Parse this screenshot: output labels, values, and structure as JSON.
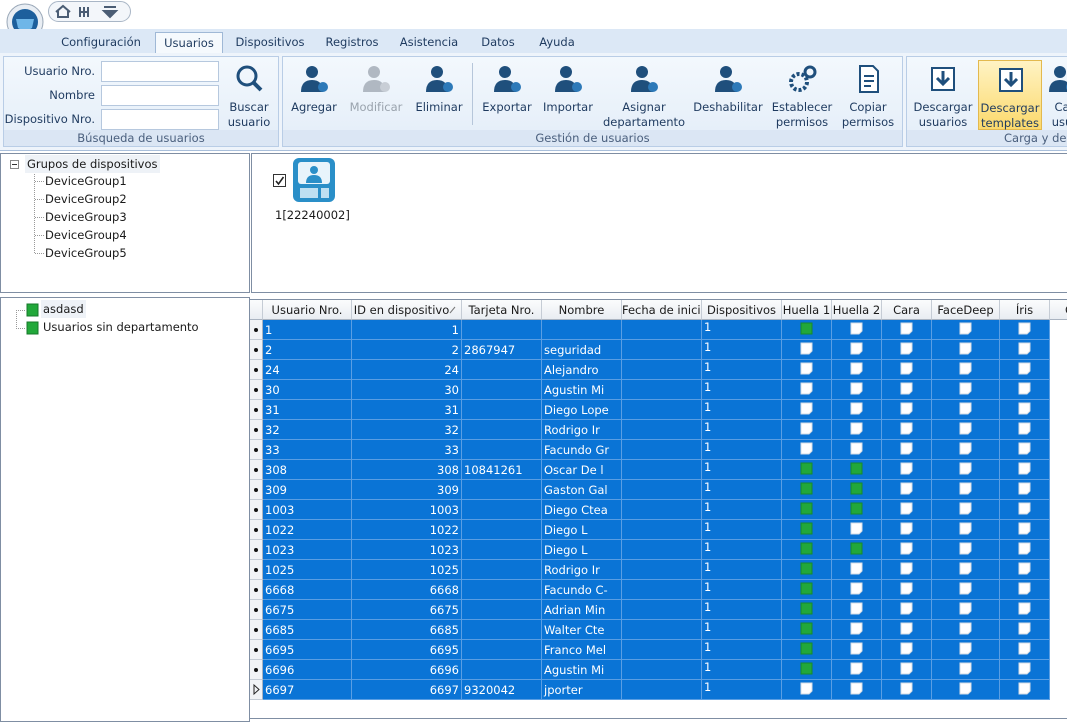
{
  "tabs": {
    "items": [
      "Configuración",
      "Usuarios",
      "Dispositivos",
      "Registros",
      "Asistencia",
      "Datos",
      "Ayuda"
    ],
    "active": 1
  },
  "ribbon": {
    "search": {
      "fields": [
        "Usuario Nro.",
        "Nombre",
        "Dispositivo Nro."
      ],
      "button": [
        "Buscar",
        "usuario"
      ],
      "label": "Búsqueda de usuarios"
    },
    "management": {
      "buttons": [
        {
          "label": [
            "Agregar"
          ]
        },
        {
          "label": [
            "Modificar"
          ],
          "disabled": true
        },
        {
          "label": [
            "Eliminar"
          ]
        },
        {
          "label": [
            "Exportar"
          ]
        },
        {
          "label": [
            "Importar"
          ]
        },
        {
          "label": [
            "Asignar",
            "departamento"
          ]
        },
        {
          "label": [
            "Deshabilitar"
          ]
        },
        {
          "label": [
            "Establecer",
            "permisos"
          ]
        },
        {
          "label": [
            "Copiar",
            "permisos"
          ]
        }
      ],
      "label": "Gestión de usuarios"
    },
    "transfer": {
      "buttons": [
        {
          "label": [
            "Descargar",
            "usuarios"
          ]
        },
        {
          "label": [
            "Descargar",
            "templates"
          ],
          "selected": true
        },
        {
          "label": [
            "Ca",
            "usu"
          ]
        }
      ],
      "label": "Carga y desc"
    }
  },
  "device_tree": {
    "root": "Grupos de dispositivos",
    "children": [
      "DeviceGroup1",
      "DeviceGroup2",
      "DeviceGroup3",
      "DeviceGroup4",
      "DeviceGroup5"
    ]
  },
  "device": {
    "label": "1[22240002]",
    "checked": true
  },
  "department_tree": {
    "items": [
      "asdasd",
      "Usuarios sin departamento"
    ],
    "selected": 0
  },
  "table": {
    "columns": [
      "Usuario Nro.",
      "ID en dispositivo",
      "Tarjeta Nro.",
      "Nombre",
      "Fecha de inicio",
      "Dispositivos",
      "Huella 1",
      "Huella 2",
      "Cara",
      "FaceDeep",
      "Íris",
      "G"
    ],
    "sorted_column": 1,
    "rows": [
      [
        "1",
        "1",
        null,
        null,
        null,
        "1",
        true,
        false,
        false,
        false,
        false
      ],
      [
        "2",
        "2",
        "2867947",
        "seguridad",
        null,
        "1",
        false,
        false,
        false,
        false,
        false
      ],
      [
        "24",
        "24",
        null,
        "Alejandro",
        null,
        "1",
        false,
        false,
        false,
        false,
        false
      ],
      [
        "30",
        "30",
        null,
        "Agustin Mi",
        null,
        "1",
        false,
        false,
        false,
        false,
        false
      ],
      [
        "31",
        "31",
        null,
        "Diego Lope",
        null,
        "1",
        false,
        false,
        false,
        false,
        false
      ],
      [
        "32",
        "32",
        null,
        "Rodrigo Ir",
        null,
        "1",
        false,
        false,
        false,
        false,
        false
      ],
      [
        "33",
        "33",
        null,
        "Facundo Gr",
        null,
        "1",
        false,
        false,
        false,
        false,
        false
      ],
      [
        "308",
        "308",
        "10841261",
        "Oscar De l",
        null,
        "1",
        true,
        true,
        false,
        false,
        false
      ],
      [
        "309",
        "309",
        null,
        "Gaston Gal",
        null,
        "1",
        true,
        true,
        false,
        false,
        false
      ],
      [
        "1003",
        "1003",
        null,
        "Diego Ctea",
        null,
        "1",
        true,
        true,
        false,
        false,
        false
      ],
      [
        "1022",
        "1022",
        null,
        "Diego L",
        null,
        "1",
        true,
        false,
        false,
        false,
        false
      ],
      [
        "1023",
        "1023",
        null,
        "Diego L",
        null,
        "1",
        true,
        true,
        false,
        false,
        false
      ],
      [
        "1025",
        "1025",
        null,
        "Rodrigo Ir",
        null,
        "1",
        true,
        false,
        false,
        false,
        false
      ],
      [
        "6668",
        "6668",
        null,
        "Facundo C-",
        null,
        "1",
        true,
        false,
        false,
        false,
        false
      ],
      [
        "6675",
        "6675",
        null,
        "Adrian Min",
        null,
        "1",
        true,
        false,
        false,
        false,
        false
      ],
      [
        "6685",
        "6685",
        null,
        "Walter Cte",
        null,
        "1",
        true,
        false,
        false,
        false,
        false
      ],
      [
        "6695",
        "6695",
        null,
        "Franco Mel",
        null,
        "1",
        true,
        false,
        false,
        false,
        false
      ],
      [
        "6696",
        "6696",
        null,
        "Agustin Mi",
        null,
        "1",
        true,
        false,
        false,
        false,
        false
      ],
      [
        "6697",
        "6697",
        "9320042",
        "jporter",
        null,
        "1",
        false,
        false,
        false,
        false,
        false
      ]
    ]
  }
}
